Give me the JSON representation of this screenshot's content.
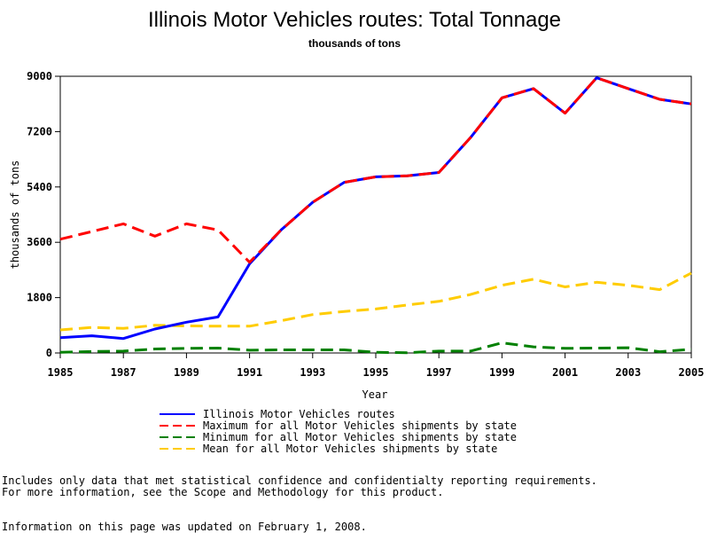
{
  "chart_data": {
    "type": "line",
    "title": "Illinois Motor Vehicles routes: Total Tonnage",
    "subtitle": "thousands of tons",
    "xlabel": "Year",
    "ylabel": "thousands of tons",
    "xlim": [
      1985,
      2005
    ],
    "ylim": [
      0,
      9000
    ],
    "x_ticks": [
      1985,
      1987,
      1989,
      1991,
      1993,
      1995,
      1997,
      1999,
      2001,
      2003,
      2005
    ],
    "y_ticks": [
      0,
      1800,
      3600,
      5400,
      7200,
      9000
    ],
    "x": [
      1985,
      1986,
      1987,
      1988,
      1989,
      1990,
      1991,
      1992,
      1993,
      1994,
      1995,
      1996,
      1997,
      1998,
      1999,
      2000,
      2001,
      2002,
      2003,
      2004,
      2005
    ],
    "series": [
      {
        "name": "Illinois Motor Vehicles routes",
        "color": "#0000ff",
        "style": "solid",
        "values": [
          500,
          560,
          470,
          780,
          1000,
          1170,
          2900,
          4000,
          4900,
          5550,
          5730,
          5760,
          5870,
          7000,
          8300,
          8600,
          7800,
          8950,
          8600,
          8250,
          8100
        ]
      },
      {
        "name": "Maximum for all Motor Vehicles shipments by state",
        "color": "#ff0000",
        "style": "dashed",
        "values": [
          3700,
          3950,
          4200,
          3800,
          4200,
          4000,
          2950,
          4000,
          4900,
          5550,
          5730,
          5760,
          5870,
          7000,
          8300,
          8600,
          7800,
          8950,
          8600,
          8250,
          8100
        ]
      },
      {
        "name": "Minimum for all Motor Vehicles shipments by state",
        "color": "#008000",
        "style": "dashed",
        "values": [
          20,
          50,
          60,
          130,
          150,
          160,
          90,
          100,
          100,
          100,
          20,
          10,
          60,
          60,
          330,
          200,
          150,
          160,
          170,
          40,
          120
        ]
      },
      {
        "name": "Mean for all Motor Vehicles shipments by state",
        "color": "#ffcc00",
        "style": "dashed",
        "values": [
          750,
          830,
          800,
          900,
          880,
          870,
          870,
          1050,
          1250,
          1350,
          1430,
          1560,
          1680,
          1900,
          2200,
          2400,
          2150,
          2300,
          2200,
          2060,
          2600
        ]
      }
    ],
    "legend_position": "bottom"
  },
  "notes": {
    "line1": "Includes only data that met statistical confidence and confidentialty reporting requirements.",
    "line2": "For more information, see the Scope and Methodology for this product.",
    "updated": "Information on this page was updated on February 1, 2008."
  }
}
